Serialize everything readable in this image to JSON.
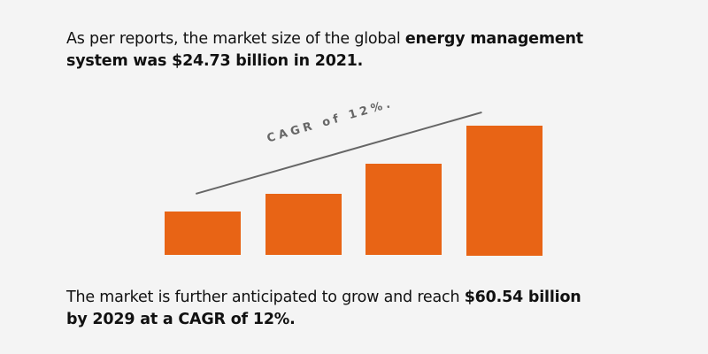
{
  "intro": {
    "text1": "As per reports, the market size of the global ",
    "bold1": "energy management",
    "bold2": "system was $24.73 billion in 2021."
  },
  "chart": {
    "trend_label": "CAGR of 12%.",
    "bar_color": "#e86415",
    "bar_count": 4
  },
  "outro": {
    "text1": "The market is further anticipated to grow and reach ",
    "bold1": "$60.54 billion",
    "bold2": "by 2029 at a CAGR of 12%."
  }
}
